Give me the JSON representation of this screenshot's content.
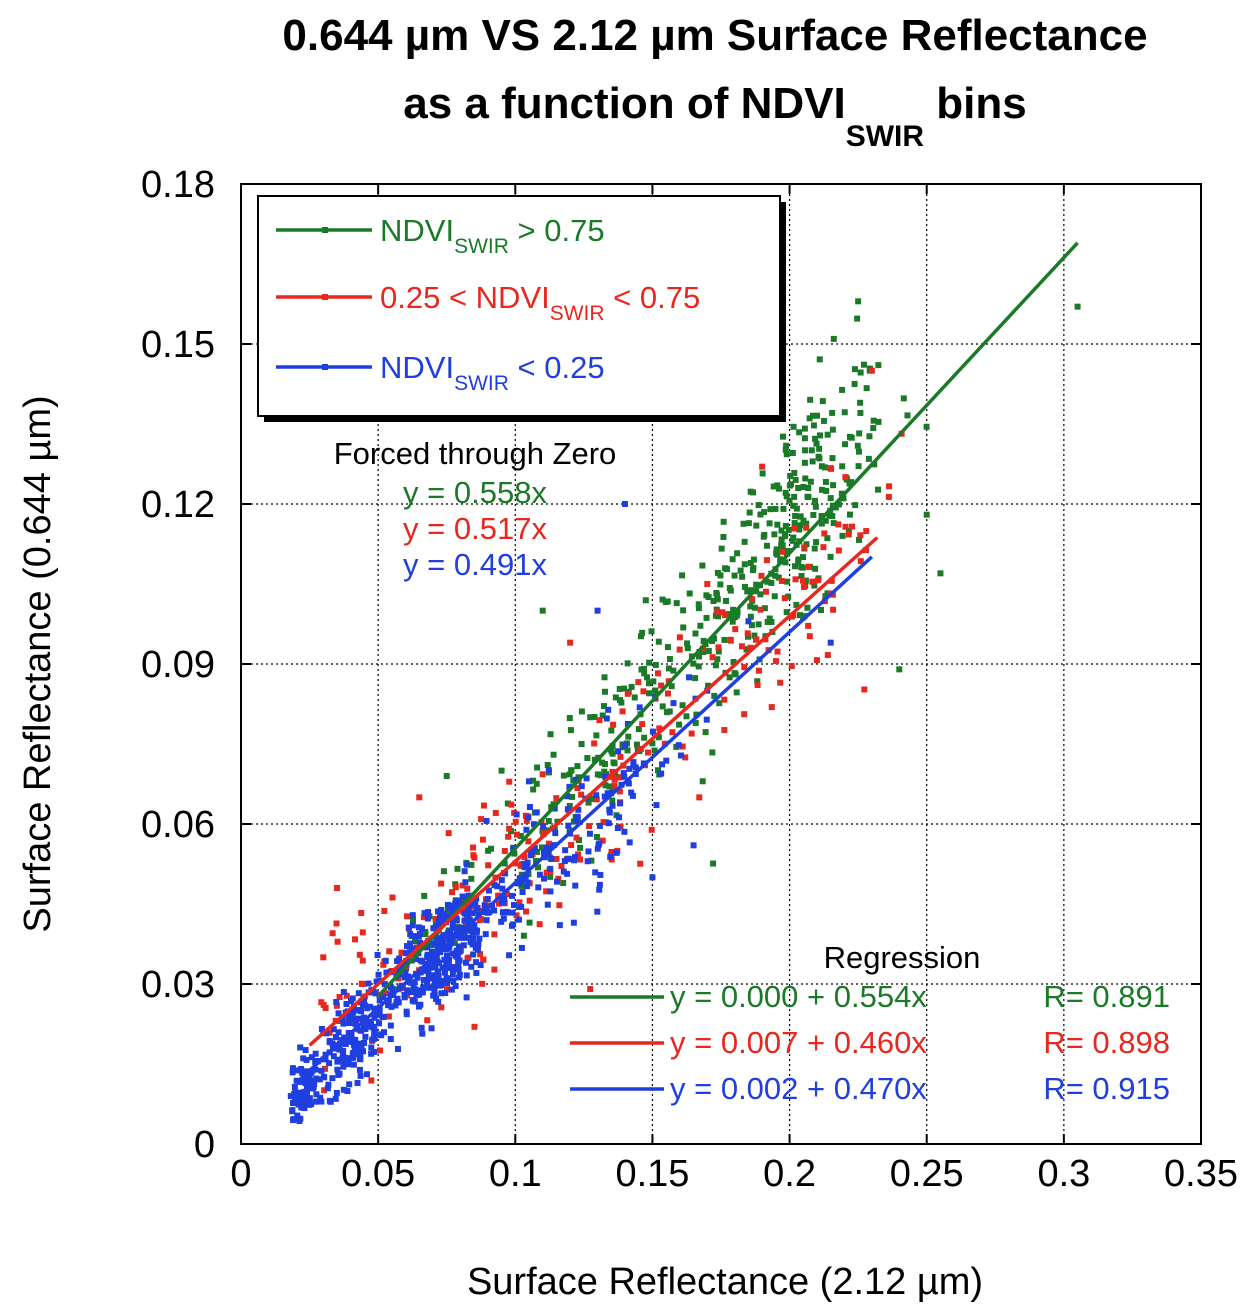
{
  "chart_data": {
    "type": "scatter",
    "title_line1": "0.644 µm VS 2.12 µm Surface Reflectance",
    "title_line2_main": "as a function of NDVI",
    "title_line2_sub": "SWIR",
    "title_line2_end": " bins",
    "xlabel": "Surface Reflectance (2.12 µm)",
    "ylabel": "Surface Reflectance (0.644 µm)",
    "xlim": [
      0,
      0.35
    ],
    "ylim": [
      0,
      0.18
    ],
    "xticks": [
      "0",
      "0.05",
      "0.1",
      "0.15",
      "0.2",
      "0.25",
      "0.3",
      "0.35"
    ],
    "yticks": [
      "0",
      "0.03",
      "0.06",
      "0.09",
      "0.12",
      "0.15",
      "0.18"
    ],
    "grid": true,
    "legend_position": "top-left",
    "series": [
      {
        "legend_main": "NDVI",
        "legend_sub": "SWIR",
        "legend_end": " > 0.75",
        "color": "#1a7a28",
        "regression": {
          "intercept": 0.0,
          "slope": 0.554,
          "x_range": [
            0.05,
            0.305
          ],
          "label": "y = 0.000 + 0.554x",
          "r_label": "R= 0.891"
        },
        "forced_label": "y = 0.558x",
        "clusters": [
          {
            "cx": 0.2,
            "cy": 0.115,
            "sx": 0.018,
            "sy": 0.016,
            "n": 280
          },
          {
            "cx": 0.15,
            "cy": 0.082,
            "sx": 0.02,
            "sy": 0.012,
            "n": 110
          },
          {
            "cx": 0.12,
            "cy": 0.066,
            "sx": 0.018,
            "sy": 0.01,
            "n": 80
          },
          {
            "cx": 0.075,
            "cy": 0.042,
            "sx": 0.012,
            "sy": 0.007,
            "n": 30
          }
        ],
        "extra_points": [
          [
            0.305,
            0.157
          ],
          [
            0.225,
            0.158
          ],
          [
            0.25,
            0.118
          ],
          [
            0.255,
            0.107
          ],
          [
            0.24,
            0.089
          ],
          [
            0.11,
            0.1
          ],
          [
            0.095,
            0.07
          ],
          [
            0.075,
            0.069
          ]
        ]
      },
      {
        "legend_main": "0.25 < NDVI",
        "legend_sub": "SWIR",
        "legend_end": " < 0.75",
        "color": "#e8281e",
        "regression": {
          "intercept": 0.007,
          "slope": 0.46,
          "x_range": [
            0.025,
            0.232
          ],
          "label": "y = 0.007 + 0.460x",
          "r_label": "R= 0.898"
        },
        "forced_label": "y = 0.517x",
        "clusters": [
          {
            "cx": 0.085,
            "cy": 0.045,
            "sx": 0.018,
            "sy": 0.012,
            "n": 90
          },
          {
            "cx": 0.14,
            "cy": 0.07,
            "sx": 0.025,
            "sy": 0.013,
            "n": 80
          },
          {
            "cx": 0.2,
            "cy": 0.1,
            "sx": 0.02,
            "sy": 0.013,
            "n": 60
          },
          {
            "cx": 0.04,
            "cy": 0.028,
            "sx": 0.01,
            "sy": 0.012,
            "n": 40
          }
        ],
        "extra_points": [
          [
            0.03,
            0.035
          ],
          [
            0.035,
            0.048
          ],
          [
            0.065,
            0.065
          ],
          [
            0.19,
            0.127
          ],
          [
            0.23,
            0.145
          ],
          [
            0.16,
            0.095
          ],
          [
            0.17,
            0.105
          ],
          [
            0.12,
            0.094
          ]
        ]
      },
      {
        "legend_main": "NDVI",
        "legend_sub": "SWIR",
        "legend_end": " < 0.25",
        "color": "#1f3fe0",
        "regression": {
          "intercept": 0.002,
          "slope": 0.47,
          "x_range": [
            0.02,
            0.23
          ],
          "label": "y = 0.002 + 0.470x",
          "r_label": "R= 0.915"
        },
        "forced_label": "y = 0.491x",
        "clusters": [
          {
            "cx": 0.073,
            "cy": 0.036,
            "sx": 0.01,
            "sy": 0.007,
            "n": 320
          },
          {
            "cx": 0.04,
            "cy": 0.02,
            "sx": 0.009,
            "sy": 0.006,
            "n": 200
          },
          {
            "cx": 0.022,
            "cy": 0.009,
            "sx": 0.003,
            "sy": 0.004,
            "n": 70
          },
          {
            "cx": 0.13,
            "cy": 0.062,
            "sx": 0.02,
            "sy": 0.01,
            "n": 90
          },
          {
            "cx": 0.105,
            "cy": 0.05,
            "sx": 0.012,
            "sy": 0.009,
            "n": 60
          }
        ],
        "extra_points": [
          [
            0.14,
            0.12
          ],
          [
            0.13,
            0.1
          ],
          [
            0.17,
            0.085
          ],
          [
            0.185,
            0.098
          ],
          [
            0.215,
            0.094
          ],
          [
            0.165,
            0.056
          ],
          [
            0.15,
            0.05
          ],
          [
            0.105,
            0.068
          ]
        ]
      }
    ],
    "annotations": {
      "forced_title": "Forced through Zero",
      "regression_title": "Regression"
    }
  }
}
